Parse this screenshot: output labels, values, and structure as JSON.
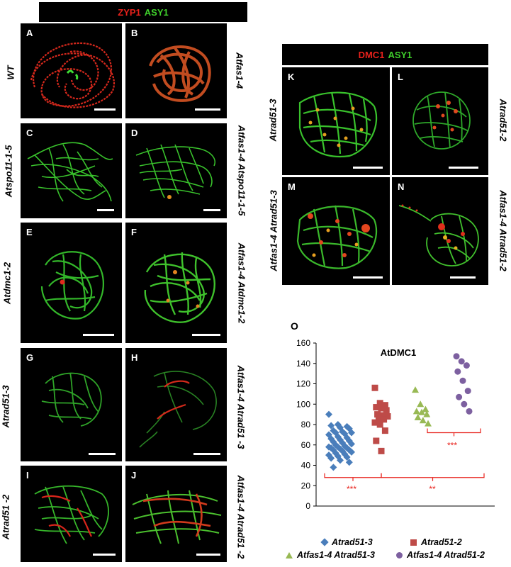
{
  "left_header": {
    "zyp1": "ZYP1",
    "asy1": "ASY1"
  },
  "right_header": {
    "dmc1": "DMC1",
    "asy1": "ASY1"
  },
  "panels": {
    "A": "A",
    "B": "B",
    "C": "C",
    "D": "D",
    "E": "E",
    "F": "F",
    "G": "G",
    "H": "H",
    "I": "I",
    "J": "J",
    "K": "K",
    "L": "L",
    "M": "M",
    "N": "N",
    "O": "O"
  },
  "genotypes": {
    "wt": "WT",
    "atfas1": "Atfas1-4",
    "atspo": "Atspo11-1-5",
    "atfas_atspo": "Atfas1-4 Atspo11-1-5",
    "atdmc": "Atdmc1-2",
    "atfas_atdmc": "Atfas1-4 Atdmc1-2",
    "atrad3": "Atrad51-3",
    "atfas_atrad3_left": "Atfas1-4 Atrad51 -3",
    "atrad2_left": "Atrad51 -2",
    "atfas_atrad2_left": "Atfas1-4 Atrad51 -2",
    "k_rad3": "Atrad51-3",
    "l_rad2": "Atrad51-2",
    "m_fas_rad3": "Atfas1-4 Atrad51-3",
    "n_fas_rad2": "Atfas1-4 Atrad51-2"
  },
  "colors": {
    "zyp1": "#e8211b",
    "asy1": "#3fcf2b",
    "s1": "#4a7ebb",
    "s2": "#be4b48",
    "s3": "#98b954",
    "s4": "#7d60a0",
    "sig": "#e8211b"
  },
  "chart_data": {
    "type": "scatter",
    "title": "AtDMC1",
    "ylim": [
      0,
      160
    ],
    "yticks": [
      "0",
      "20",
      "40",
      "60",
      "80",
      "100",
      "120",
      "140",
      "160"
    ],
    "series": [
      {
        "name": "Atrad51-3",
        "marker": "diamond",
        "values": [
          90,
          80,
          78,
          79,
          77,
          76,
          74,
          73,
          72,
          72,
          71,
          70,
          68,
          67,
          66,
          65,
          64,
          63,
          62,
          61,
          60,
          59,
          58,
          58,
          57,
          57,
          56,
          55,
          55,
          54,
          53,
          52,
          51,
          50,
          49,
          48,
          47,
          45,
          43,
          38
        ]
      },
      {
        "name": "Atrad51-2",
        "marker": "square",
        "values": [
          116,
          101,
          99,
          97,
          96,
          94,
          90,
          89,
          88,
          86,
          85,
          82,
          80,
          74,
          64,
          54
        ]
      },
      {
        "name": "Atfas1-4 Atrad51-3",
        "marker": "triangle",
        "values": [
          114,
          100,
          95,
          93,
          92,
          90,
          87,
          84,
          81
        ]
      },
      {
        "name": "Atfas1-4 Atrad51-2",
        "marker": "circle",
        "values": [
          147,
          142,
          138,
          132,
          123,
          113,
          107,
          100,
          93
        ]
      }
    ],
    "significance": [
      {
        "label": "***",
        "from": "Atrad51-3",
        "to": "Atrad51-2"
      },
      {
        "label": "**",
        "from": "Atrad51-2",
        "to": "Atfas1-4 Atrad51-2"
      },
      {
        "label": "***",
        "from": "Atfas1-4 Atrad51-3",
        "to": "Atfas1-4 Atrad51-2"
      }
    ]
  }
}
